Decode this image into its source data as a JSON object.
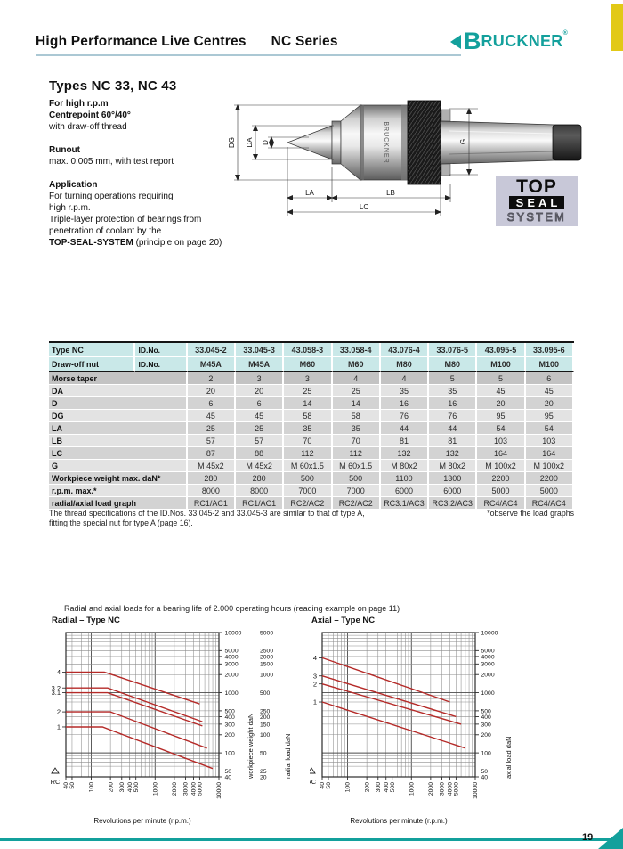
{
  "page": {
    "header": {
      "title": "High Performance Live Centres",
      "series": "NC Series",
      "brand_b": "B",
      "brand_rest": "RUCKNER",
      "brand_reg": "®"
    },
    "intro": {
      "heading": "Types NC 33, NC 43",
      "line1": "For high r.p.m",
      "line2": "Centrepoint 60°/40°",
      "line3": "with draw-off thread",
      "runout_heading": "Runout",
      "runout_text": "max. 0.005 mm, with test report",
      "application_heading": "Application",
      "app1": "For turning operations requiring",
      "app2": "high r.p.m.",
      "app3": "Triple-layer protection of bearings from",
      "app4": "penetration of coolant by the",
      "app_bold": "TOP-SEAL-SYSTEM",
      "app_bold_rest": " (principle on page 20)"
    },
    "drawing": {
      "labels": {
        "dg": "DG",
        "da": "DA",
        "d": "D",
        "g": "G",
        "la": "LA",
        "lb": "LB",
        "lc": "LC"
      },
      "body_text": "BRUCKNER"
    },
    "topseal": {
      "top": "TOP",
      "seal": "SEAL",
      "system": "SYSTEM"
    },
    "table": {
      "header_rows": [
        {
          "label": "Type NC",
          "sub": "ID.No.",
          "values": [
            "33.045-2",
            "33.045-3",
            "43.058-3",
            "33.058-4",
            "43.076-4",
            "33.076-5",
            "43.095-5",
            "33.095-6"
          ]
        },
        {
          "label": "Draw-off nut",
          "sub": "ID.No.",
          "values": [
            "M45A",
            "M45A",
            "M60",
            "M60",
            "M80",
            "M80",
            "M100",
            "M100"
          ]
        }
      ],
      "rows": [
        {
          "label": "Morse taper",
          "values": [
            "2",
            "3",
            "3",
            "4",
            "4",
            "5",
            "5",
            "6"
          ]
        },
        {
          "label": "DA",
          "values": [
            "20",
            "20",
            "25",
            "25",
            "35",
            "35",
            "45",
            "45"
          ]
        },
        {
          "label": "D",
          "values": [
            "6",
            "6",
            "14",
            "14",
            "16",
            "16",
            "20",
            "20"
          ]
        },
        {
          "label": "DG",
          "values": [
            "45",
            "45",
            "58",
            "58",
            "76",
            "76",
            "95",
            "95"
          ]
        },
        {
          "label": "LA",
          "values": [
            "25",
            "25",
            "35",
            "35",
            "44",
            "44",
            "54",
            "54"
          ]
        },
        {
          "label": "LB",
          "values": [
            "57",
            "57",
            "70",
            "70",
            "81",
            "81",
            "103",
            "103"
          ]
        },
        {
          "label": "LC",
          "values": [
            "87",
            "88",
            "112",
            "112",
            "132",
            "132",
            "164",
            "164"
          ]
        },
        {
          "label": "G",
          "values": [
            "M 45x2",
            "M 45x2",
            "M 60x1.5",
            "M 60x1.5",
            "M 80x2",
            "M 80x2",
            "M 100x2",
            "M 100x2"
          ]
        },
        {
          "label": "Workpiece weight max. daN*",
          "values": [
            "280",
            "280",
            "500",
            "500",
            "1100",
            "1300",
            "2200",
            "2200"
          ]
        },
        {
          "label": "r.p.m. max.*",
          "values": [
            "8000",
            "8000",
            "7000",
            "7000",
            "6000",
            "6000",
            "5000",
            "5000"
          ]
        },
        {
          "label": "radial/axial load graph",
          "values": [
            "RC1/AC1",
            "RC1/AC1",
            "RC2/AC2",
            "RC2/AC2",
            "RC3.1/AC3",
            "RC3.2/AC3",
            "RC4/AC4",
            "RC4/AC4"
          ]
        }
      ]
    },
    "notes": {
      "note1": "The thread specifications of the ID.Nos. 33.045-2 and 33.045-3 are similar to that of type A,",
      "note2": "fitting the special nut for type A (page 16).",
      "right": "*observe the load graphs"
    },
    "charts_caption": "Radial and axial loads for a bearing life of 2.000 operating hours (reading example on page 11)",
    "page_number": "19",
    "colors": {
      "teal": "#13a09c",
      "yellow": "#e2c916",
      "header_rule": "#abc8d4",
      "table_header_bg": "#c9e8e8",
      "row_dark": "#d3d3d3",
      "row_light": "#e3e3e3",
      "row_first": "#c3c3c3",
      "chart_line": "#b52a28",
      "topseal_bg": "#c8c8d8"
    }
  },
  "chart_data": [
    {
      "type": "line",
      "title": "Radial – Type NC",
      "x_scale": "log",
      "y_scale": "log",
      "x_range": [
        40,
        10000
      ],
      "y_range": [
        40,
        10000
      ],
      "grid": true,
      "x_ticks": [
        40,
        50,
        100,
        200,
        300,
        400,
        500,
        1000,
        2000,
        3000,
        4000,
        5000,
        10000
      ],
      "y_ticks_right": [
        10000,
        5000,
        4000,
        3000,
        2000,
        1000,
        500,
        400,
        300,
        200,
        100,
        50,
        40
      ],
      "y_axis_label": "workpiece weight daN",
      "secondary_scale": {
        "label": "radial load daN",
        "ticks": [
          5000,
          2500,
          2000,
          1500,
          1000,
          500,
          250,
          200,
          150,
          100,
          50,
          25,
          20
        ]
      },
      "xlabel": "Revolutions per minute (r.p.m.)",
      "corner_label": "RC",
      "line_color": "#b52a28",
      "series": [
        {
          "name": "4",
          "points": [
            [
              40,
              2200
            ],
            [
              160,
              2200
            ],
            [
              5000,
              650
            ]
          ]
        },
        {
          "name": "3.2",
          "points": [
            [
              40,
              1200
            ],
            [
              180,
              1200
            ],
            [
              5500,
              330
            ]
          ]
        },
        {
          "name": "3.1",
          "points": [
            [
              40,
              1000
            ],
            [
              180,
              1000
            ],
            [
              5500,
              280
            ]
          ]
        },
        {
          "name": "2",
          "points": [
            [
              40,
              480
            ],
            [
              200,
              480
            ],
            [
              6500,
              120
            ]
          ]
        },
        {
          "name": "1",
          "points": [
            [
              40,
              270
            ],
            [
              150,
              270
            ],
            [
              8000,
              55
            ]
          ]
        }
      ]
    },
    {
      "type": "line",
      "title": "Axial – Type NC",
      "x_scale": "log",
      "y_scale": "log",
      "x_range": [
        40,
        10000
      ],
      "y_range": [
        40,
        10000
      ],
      "grid": true,
      "x_ticks": [
        40,
        50,
        100,
        200,
        300,
        400,
        500,
        1000,
        2000,
        3000,
        4000,
        5000,
        10000
      ],
      "y_ticks_right": [
        10000,
        5000,
        4000,
        3000,
        2000,
        1000,
        500,
        400,
        300,
        200,
        100,
        50,
        40
      ],
      "y_axis_label": "axial load daN",
      "xlabel": "Revolutions per minute (r.p.m.)",
      "corner_label": "AC",
      "line_color": "#b52a28",
      "series": [
        {
          "name": "4",
          "points": [
            [
              40,
              3800
            ],
            [
              4000,
              700
            ]
          ]
        },
        {
          "name": "3",
          "points": [
            [
              40,
              1900
            ],
            [
              5000,
              400
            ]
          ]
        },
        {
          "name": "2",
          "points": [
            [
              40,
              1400
            ],
            [
              6000,
              300
            ]
          ]
        },
        {
          "name": "1",
          "points": [
            [
              40,
              700
            ],
            [
              7000,
              120
            ]
          ]
        }
      ]
    }
  ]
}
